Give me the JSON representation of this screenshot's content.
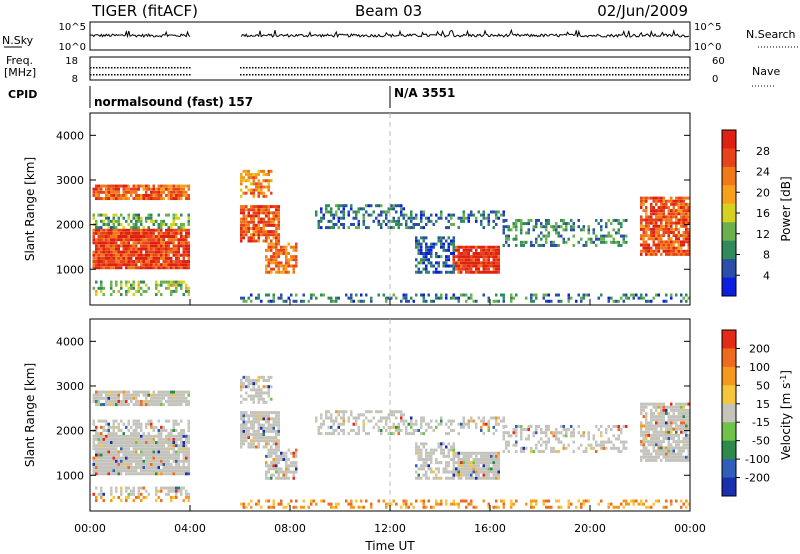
{
  "header": {
    "station": "TIGER (fitACF)",
    "beam": "Beam 03",
    "date": "02/Jun/2009"
  },
  "noise_panel": {
    "left_label": "N.Sky",
    "right_label": "N.Search",
    "left_ticks": [
      "10^5",
      "10^0"
    ],
    "right_ticks": [
      "10^5",
      "10^0"
    ]
  },
  "freq_panel": {
    "left_label_1": "Freq.",
    "left_label_2": "[MHz]",
    "right_label": "Nave",
    "left_ticks": [
      "18",
      "8"
    ],
    "right_ticks": [
      "60",
      "0"
    ]
  },
  "cpid": {
    "label": "CPID",
    "entries": [
      {
        "text": "normalsound (fast) 157",
        "start": 0
      },
      {
        "text": "N/A 3551",
        "start": 12
      }
    ]
  },
  "chart_data": [
    {
      "type": "heatmap",
      "name": "power",
      "ylabel": "Slant Range [km]",
      "xlabel": "",
      "xlim": [
        0,
        24
      ],
      "ylim": [
        200,
        4500
      ],
      "yticks": [
        1000,
        2000,
        3000,
        4000
      ],
      "colorbar": {
        "label": "Power [dB]",
        "ticks": [
          "28",
          "24",
          "20",
          "16",
          "12",
          "8",
          "4"
        ],
        "colors": [
          "#0b1fe0",
          "#2a4fa8",
          "#2f8a5c",
          "#6ab04c",
          "#d6d11e",
          "#f7a11a",
          "#f07a1a",
          "#e8431a",
          "#e02010"
        ]
      },
      "data_gaps_hours": [
        [
          4.0,
          6.0
        ]
      ]
    },
    {
      "type": "heatmap",
      "name": "velocity",
      "ylabel": "Slant Range [km]",
      "xlabel": "Time UT",
      "xlim": [
        0,
        24
      ],
      "ylim": [
        200,
        4500
      ],
      "yticks": [
        1000,
        2000,
        3000,
        4000
      ],
      "xticks": [
        "00:00",
        "04:00",
        "08:00",
        "12:00",
        "16:00",
        "20:00",
        "00:00"
      ],
      "colorbar": {
        "label": "Velocity [m s",
        "label_sup": "-1",
        "label_end": "]",
        "ticks": [
          "200",
          "100",
          "50",
          "15",
          "-15",
          "-50",
          "-100",
          "-200"
        ],
        "colors": [
          "#1a2fb0",
          "#2f5fb8",
          "#2e8a4a",
          "#6fc24a",
          "#c4c4bc",
          "#f5c63c",
          "#f39a1e",
          "#ee6a1c",
          "#e62a18"
        ]
      },
      "data_gaps_hours": [
        [
          4.0,
          6.0
        ]
      ]
    }
  ]
}
